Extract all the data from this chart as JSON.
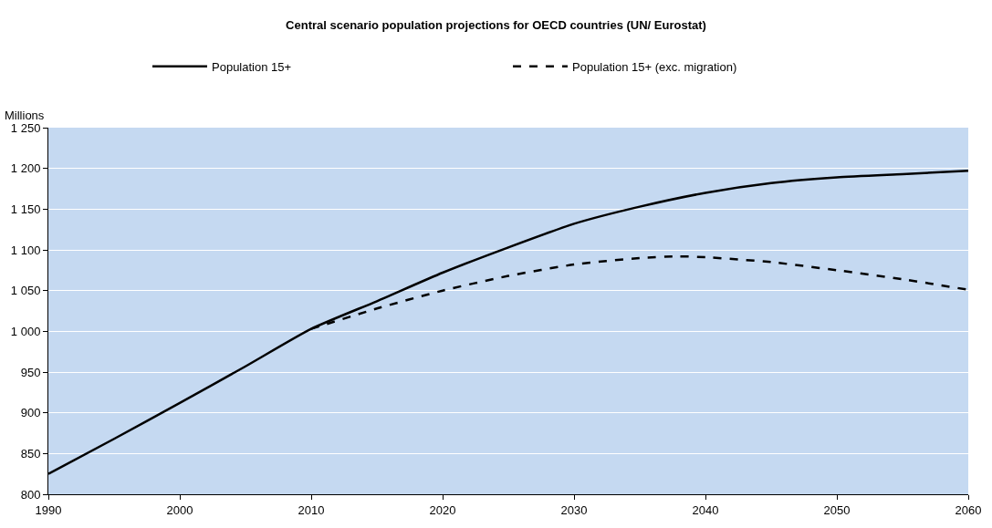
{
  "chart_data": {
    "type": "line",
    "title": "Central scenario population projections for OECD countries (UN/ Eurostat)",
    "ylabel": "Millions",
    "xlim": [
      1990,
      2060
    ],
    "xticks": [
      1990,
      2000,
      2010,
      2020,
      2030,
      2040,
      2050,
      2060
    ],
    "ylim": [
      800,
      1250
    ],
    "yticks": [
      800,
      850,
      900,
      950,
      {
        "value": 1000,
        "label": "1 000"
      },
      {
        "value": 1050,
        "label": "1 050"
      },
      {
        "value": 1100,
        "label": "1 100"
      },
      {
        "value": 1150,
        "label": "1 150"
      },
      {
        "value": 1200,
        "label": "1 200"
      },
      {
        "value": 1250,
        "label": "1 250"
      }
    ],
    "grid": "y",
    "legend": "top",
    "marker": "none",
    "series": [
      {
        "name": "Population 15+",
        "color": "#000000",
        "line_style": "solid",
        "x": [
          1990,
          1995,
          2000,
          2005,
          2010,
          2015,
          2020,
          2025,
          2030,
          2035,
          2040,
          2045,
          2050,
          2055,
          2060
        ],
        "values": [
          825,
          868,
          912,
          957,
          1003,
          1037,
          1072,
          1103,
          1132,
          1153,
          1170,
          1182,
          1189,
          1193,
          1197
        ]
      },
      {
        "name": "Population 15+ (exc. migration)",
        "color": "#000000",
        "line_style": "dashed",
        "x": [
          2010,
          2015,
          2020,
          2025,
          2030,
          2035,
          2038,
          2040,
          2045,
          2050,
          2055,
          2060
        ],
        "values": [
          1003,
          1028,
          1050,
          1068,
          1082,
          1090,
          1092,
          1091,
          1085,
          1075,
          1064,
          1051
        ]
      }
    ]
  }
}
